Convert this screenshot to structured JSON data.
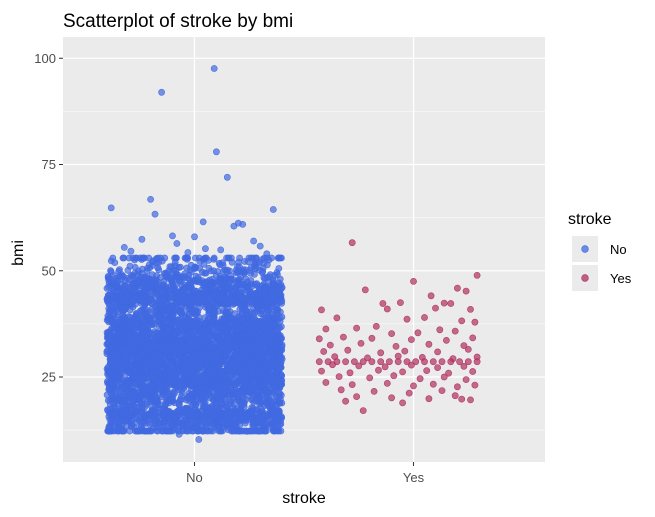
{
  "chart_data": {
    "type": "scatter",
    "title": "Scatterplot of stroke by bmi",
    "xlabel": "stroke",
    "ylabel": "bmi",
    "categories": [
      "No",
      "Yes"
    ],
    "ylim": [
      5,
      105
    ],
    "yticks": [
      25,
      50,
      75,
      100
    ],
    "grid": true,
    "jitter": true,
    "legend": {
      "title": "stroke",
      "position": "right",
      "entries": [
        {
          "label": "No",
          "color": "#4169E1"
        },
        {
          "label": "Yes",
          "color": "#B03060"
        }
      ]
    },
    "series": [
      {
        "name": "No",
        "category": "No",
        "color": "#4169E1",
        "summary": {
          "n_approx": 4700,
          "typical_range": [
            17,
            42
          ],
          "min": 10.3,
          "max": 97.6
        },
        "outliers": [
          {
            "x": 0.85,
            "y": 92.0
          },
          {
            "x": 1.09,
            "y": 97.6
          },
          {
            "x": 1.1,
            "y": 78.0
          },
          {
            "x": 1.15,
            "y": 72.0
          },
          {
            "x": 0.8,
            "y": 66.8
          },
          {
            "x": 0.82,
            "y": 63.3
          },
          {
            "x": 0.62,
            "y": 64.8
          },
          {
            "x": 1.36,
            "y": 64.4
          },
          {
            "x": 1.2,
            "y": 61.2
          },
          {
            "x": 1.04,
            "y": 61.5
          },
          {
            "x": 1.18,
            "y": 60.5
          },
          {
            "x": 1.22,
            "y": 60.9
          },
          {
            "x": 0.9,
            "y": 58.2
          },
          {
            "x": 1.0,
            "y": 58.0
          },
          {
            "x": 0.76,
            "y": 57.4
          },
          {
            "x": 1.27,
            "y": 57.0
          },
          {
            "x": 0.92,
            "y": 56.4
          },
          {
            "x": 1.3,
            "y": 55.8
          },
          {
            "x": 0.68,
            "y": 55.5
          },
          {
            "x": 1.05,
            "y": 55.2
          },
          {
            "x": 1.12,
            "y": 54.9
          },
          {
            "x": 0.71,
            "y": 54.6
          },
          {
            "x": 0.97,
            "y": 54.3
          },
          {
            "x": 1.33,
            "y": 54.0
          },
          {
            "x": 1.02,
            "y": 10.3
          },
          {
            "x": 0.93,
            "y": 11.5
          },
          {
            "x": 1.24,
            "y": 12.2
          }
        ]
      },
      {
        "name": "Yes",
        "category": "Yes",
        "color": "#B03060",
        "points": [
          {
            "x": 1.72,
            "y": 56.6
          },
          {
            "x": 1.78,
            "y": 45.5
          },
          {
            "x": 2.0,
            "y": 47.5
          },
          {
            "x": 2.29,
            "y": 48.9
          },
          {
            "x": 2.24,
            "y": 45.2
          },
          {
            "x": 2.2,
            "y": 45.9
          },
          {
            "x": 2.08,
            "y": 44.1
          },
          {
            "x": 1.86,
            "y": 42.3
          },
          {
            "x": 1.94,
            "y": 42.5
          },
          {
            "x": 2.14,
            "y": 42.4
          },
          {
            "x": 2.17,
            "y": 42.3
          },
          {
            "x": 1.58,
            "y": 40.8
          },
          {
            "x": 1.88,
            "y": 41.0
          },
          {
            "x": 2.1,
            "y": 41.2
          },
          {
            "x": 2.26,
            "y": 40.9
          },
          {
            "x": 1.65,
            "y": 38.9
          },
          {
            "x": 1.97,
            "y": 38.6
          },
          {
            "x": 2.05,
            "y": 39.0
          },
          {
            "x": 2.22,
            "y": 38.2
          },
          {
            "x": 2.28,
            "y": 37.9
          },
          {
            "x": 1.6,
            "y": 36.3
          },
          {
            "x": 1.74,
            "y": 36.5
          },
          {
            "x": 1.83,
            "y": 36.9
          },
          {
            "x": 2.12,
            "y": 36.1
          },
          {
            "x": 1.9,
            "y": 35.2
          },
          {
            "x": 2.02,
            "y": 35.4
          },
          {
            "x": 2.19,
            "y": 35.8
          },
          {
            "x": 1.57,
            "y": 34.0
          },
          {
            "x": 1.68,
            "y": 34.4
          },
          {
            "x": 1.81,
            "y": 34.1
          },
          {
            "x": 1.99,
            "y": 33.8
          },
          {
            "x": 2.15,
            "y": 33.6
          },
          {
            "x": 2.27,
            "y": 34.2
          },
          {
            "x": 1.62,
            "y": 32.5
          },
          {
            "x": 1.76,
            "y": 32.9
          },
          {
            "x": 1.92,
            "y": 32.2
          },
          {
            "x": 2.07,
            "y": 32.7
          },
          {
            "x": 2.23,
            "y": 32.4
          },
          {
            "x": 1.59,
            "y": 31.0
          },
          {
            "x": 1.7,
            "y": 31.3
          },
          {
            "x": 1.85,
            "y": 30.7
          },
          {
            "x": 1.96,
            "y": 31.1
          },
          {
            "x": 2.11,
            "y": 30.9
          },
          {
            "x": 2.25,
            "y": 31.5
          },
          {
            "x": 1.64,
            "y": 29.8
          },
          {
            "x": 1.79,
            "y": 29.5
          },
          {
            "x": 1.93,
            "y": 29.9
          },
          {
            "x": 2.04,
            "y": 29.6
          },
          {
            "x": 2.18,
            "y": 29.3
          },
          {
            "x": 2.29,
            "y": 29.7
          },
          {
            "x": 1.57,
            "y": 28.6
          },
          {
            "x": 1.61,
            "y": 28.6
          },
          {
            "x": 1.65,
            "y": 28.6
          },
          {
            "x": 1.69,
            "y": 28.6
          },
          {
            "x": 1.73,
            "y": 28.6
          },
          {
            "x": 1.77,
            "y": 28.6
          },
          {
            "x": 1.81,
            "y": 28.6
          },
          {
            "x": 1.85,
            "y": 28.6
          },
          {
            "x": 1.89,
            "y": 28.6
          },
          {
            "x": 1.93,
            "y": 28.6
          },
          {
            "x": 1.97,
            "y": 28.6
          },
          {
            "x": 2.01,
            "y": 28.6
          },
          {
            "x": 2.05,
            "y": 28.6
          },
          {
            "x": 2.09,
            "y": 28.6
          },
          {
            "x": 2.13,
            "y": 28.6
          },
          {
            "x": 2.17,
            "y": 28.6
          },
          {
            "x": 2.21,
            "y": 28.6
          },
          {
            "x": 2.25,
            "y": 28.6
          },
          {
            "x": 2.29,
            "y": 28.6
          },
          {
            "x": 1.63,
            "y": 27.9
          },
          {
            "x": 1.75,
            "y": 27.6
          },
          {
            "x": 1.87,
            "y": 27.4
          },
          {
            "x": 1.99,
            "y": 27.8
          },
          {
            "x": 2.11,
            "y": 27.2
          },
          {
            "x": 2.23,
            "y": 27.5
          },
          {
            "x": 1.58,
            "y": 26.4
          },
          {
            "x": 1.71,
            "y": 26.0
          },
          {
            "x": 1.84,
            "y": 26.6
          },
          {
            "x": 1.95,
            "y": 26.2
          },
          {
            "x": 2.06,
            "y": 26.5
          },
          {
            "x": 2.16,
            "y": 25.9
          },
          {
            "x": 2.27,
            "y": 26.3
          },
          {
            "x": 1.66,
            "y": 25.1
          },
          {
            "x": 1.8,
            "y": 24.8
          },
          {
            "x": 1.91,
            "y": 25.3
          },
          {
            "x": 2.03,
            "y": 24.6
          },
          {
            "x": 2.14,
            "y": 25.0
          },
          {
            "x": 2.24,
            "y": 24.4
          },
          {
            "x": 1.6,
            "y": 23.7
          },
          {
            "x": 1.72,
            "y": 23.2
          },
          {
            "x": 1.88,
            "y": 23.5
          },
          {
            "x": 2.0,
            "y": 22.9
          },
          {
            "x": 2.09,
            "y": 23.3
          },
          {
            "x": 2.2,
            "y": 22.7
          },
          {
            "x": 2.28,
            "y": 23.1
          },
          {
            "x": 1.67,
            "y": 22.0
          },
          {
            "x": 1.82,
            "y": 21.6
          },
          {
            "x": 1.98,
            "y": 21.2
          },
          {
            "x": 2.13,
            "y": 21.8
          },
          {
            "x": 1.74,
            "y": 20.4
          },
          {
            "x": 1.9,
            "y": 20.1
          },
          {
            "x": 2.19,
            "y": 20.6
          },
          {
            "x": 2.22,
            "y": 19.8
          },
          {
            "x": 2.26,
            "y": 19.6
          },
          {
            "x": 1.95,
            "y": 18.9
          },
          {
            "x": 1.77,
            "y": 17.1
          },
          {
            "x": 1.69,
            "y": 19.3
          },
          {
            "x": 2.07,
            "y": 19.9
          }
        ]
      }
    ]
  }
}
